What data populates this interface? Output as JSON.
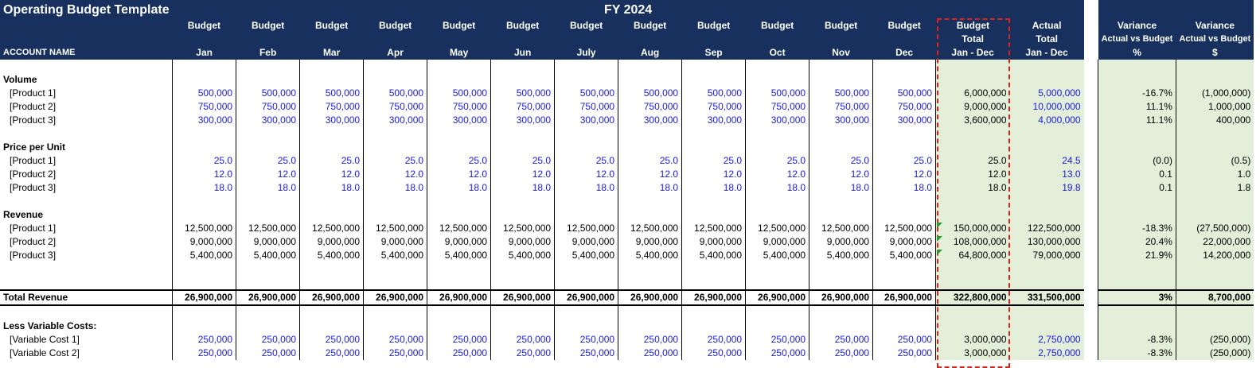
{
  "title": "Operating Budget Template",
  "fy": "FY 2024",
  "account_name": "ACCOUNT NAME",
  "budget_word": "Budget",
  "months": [
    "Jan",
    "Feb",
    "Mar",
    "Apr",
    "May",
    "Jun",
    "July",
    "Aug",
    "Sep",
    "Oct",
    "Nov",
    "Dec"
  ],
  "budget_total": [
    "Budget",
    "Total",
    "Jan - Dec"
  ],
  "actual_total": [
    "Actual",
    "Total",
    "Jan - Dec"
  ],
  "var_pct": [
    "Variance",
    "Actual vs Budget",
    "%"
  ],
  "var_dollar": [
    "Variance",
    "Actual vs Budget",
    "$"
  ],
  "sections": [
    {
      "label": "Volume",
      "rows": [
        {
          "name": "[Product 1]",
          "month": "500,000",
          "budget": "6,000,000",
          "actual": "5,000,000",
          "pct": "-16.7%",
          "dollar": "(1,000,000)",
          "blue": true
        },
        {
          "name": "[Product 2]",
          "month": "750,000",
          "budget": "9,000,000",
          "actual": "10,000,000",
          "pct": "11.1%",
          "dollar": "1,000,000",
          "blue": true
        },
        {
          "name": "[Product 3]",
          "month": "300,000",
          "budget": "3,600,000",
          "actual": "4,000,000",
          "pct": "11.1%",
          "dollar": "400,000",
          "blue": true
        }
      ]
    },
    {
      "label": "Price per Unit",
      "rows": [
        {
          "name": "[Product 1]",
          "month": "25.0",
          "budget": "25.0",
          "actual": "24.5",
          "pct": "(0.0)",
          "dollar": "(0.5)",
          "blue": true
        },
        {
          "name": "[Product 2]",
          "month": "12.0",
          "budget": "12.0",
          "actual": "13.0",
          "pct": "0.1",
          "dollar": "1.0",
          "blue": true
        },
        {
          "name": "[Product 3]",
          "month": "18.0",
          "budget": "18.0",
          "actual": "19.8",
          "pct": "0.1",
          "dollar": "1.8",
          "blue": true
        }
      ]
    },
    {
      "label": "Revenue",
      "rows": [
        {
          "name": "[Product 1]",
          "month": "12,500,000",
          "budget": "150,000,000",
          "actual": "122,500,000",
          "pct": "-18.3%",
          "dollar": "(27,500,000)",
          "blue": false
        },
        {
          "name": "[Product 2]",
          "month": "9,000,000",
          "budget": "108,000,000",
          "actual": "130,000,000",
          "pct": "20.4%",
          "dollar": "22,000,000",
          "blue": false
        },
        {
          "name": "[Product 3]",
          "month": "5,400,000",
          "budget": "64,800,000",
          "actual": "79,000,000",
          "pct": "21.9%",
          "dollar": "14,200,000",
          "blue": false
        }
      ]
    }
  ],
  "total_revenue": {
    "name": "Total Revenue",
    "month": "26,900,000",
    "budget": "322,800,000",
    "actual": "331,500,000",
    "pct": "3%",
    "dollar": "8,700,000"
  },
  "variable_costs": {
    "label": "Less Variable Costs:",
    "rows": [
      {
        "name": "[Variable Cost 1]",
        "month": "250,000",
        "budget": "3,000,000",
        "actual": "2,750,000",
        "pct": "-8.3%",
        "dollar": "(250,000)",
        "blue": true
      },
      {
        "name": "[Variable Cost 2]",
        "month": "250,000",
        "budget": "3,000,000",
        "actual": "2,750,000",
        "pct": "-8.3%",
        "dollar": "(250,000)",
        "blue": true
      }
    ]
  },
  "colors": {
    "header": "#17305e",
    "green_fill": "#e3efd9",
    "input_blue": "#1a1adb",
    "dashed_border": "#e0201a"
  }
}
